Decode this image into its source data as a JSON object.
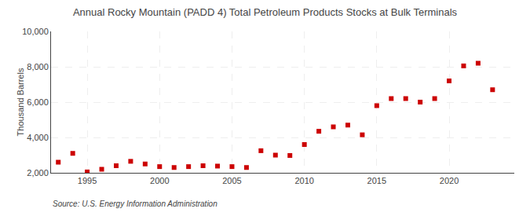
{
  "chart_data": {
    "type": "scatter",
    "title": "Annual Rocky Mountain (PADD 4) Total Petroleum Products Stocks at Bulk Terminals",
    "ylabel": "Thousand Barrels",
    "annotation": "Source: U.S. Energy Information Administration",
    "color": "#cc0000",
    "marker": "square",
    "grid": true,
    "xlim": [
      1992.5,
      2024.5
    ],
    "ylim": [
      2000,
      10000
    ],
    "xticks": [
      1995,
      2000,
      2005,
      2010,
      2015,
      2020
    ],
    "yticks": [
      {
        "value": 2000,
        "label": "2,000"
      },
      {
        "value": 4000,
        "label": "4,000"
      },
      {
        "value": 6000,
        "label": "6,000"
      },
      {
        "value": 8000,
        "label": "8,000"
      },
      {
        "value": 10000,
        "label": "10,000"
      }
    ],
    "x": [
      1993,
      1994,
      1995,
      1996,
      1997,
      1998,
      1999,
      2000,
      2001,
      2002,
      2003,
      2004,
      2005,
      2006,
      2007,
      2008,
      2009,
      2010,
      2011,
      2012,
      2013,
      2014,
      2015,
      2016,
      2017,
      2018,
      2019,
      2020,
      2021,
      2022,
      2023
    ],
    "values": [
      2600,
      3100,
      2050,
      2200,
      2400,
      2650,
      2500,
      2350,
      2300,
      2350,
      2400,
      2380,
      2350,
      2300,
      3250,
      3000,
      2980,
      3600,
      4350,
      4600,
      4700,
      4150,
      5800,
      6200,
      6200,
      6000,
      6200,
      7200,
      8050,
      8200,
      6700
    ]
  }
}
